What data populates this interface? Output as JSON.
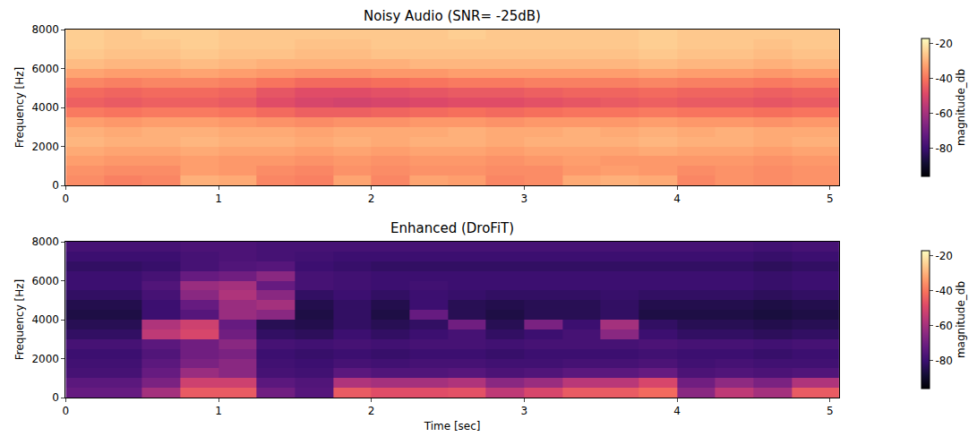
{
  "chart_data": [
    {
      "type": "heatmap",
      "title": "Noisy Audio (SNR= -25dB)",
      "ylabel": "Frequency [Hz]",
      "xlim": [
        0,
        5.06
      ],
      "xticks": [
        0,
        1,
        2,
        3,
        4,
        5
      ],
      "ylim": [
        0,
        8000
      ],
      "yticks": [
        0,
        2000,
        4000,
        6000,
        8000
      ],
      "zlim": [
        -96,
        -17
      ],
      "zticks": [
        -20,
        -40,
        -60,
        -80
      ],
      "colorbar_label": "magnitude_db",
      "time_edges": [
        0,
        0.25,
        0.5,
        0.75,
        1,
        1.25,
        1.5,
        1.75,
        2,
        2.25,
        2.5,
        2.75,
        3,
        3.25,
        3.5,
        3.75,
        4,
        4.25,
        4.5,
        4.75,
        5.06
      ],
      "freq_edges": [
        0,
        500,
        1000,
        1500,
        2000,
        2500,
        3000,
        3500,
        4000,
        4500,
        5000,
        5500,
        6000,
        6500,
        7000,
        7500,
        8000
      ],
      "cells": [
        [
          -36,
          -38,
          -37,
          -30,
          -31,
          -37,
          -38,
          -32,
          -37,
          -32,
          -33,
          -37,
          -36,
          -31,
          -30,
          -31,
          -37,
          -35,
          -36,
          -35
        ],
        [
          -35,
          -36,
          -36,
          -33,
          -34,
          -36,
          -37,
          -35,
          -36,
          -35,
          -35,
          -36,
          -36,
          -34,
          -33,
          -34,
          -36,
          -35,
          -36,
          -35
        ],
        [
          -33,
          -34,
          -34,
          -33,
          -34,
          -34,
          -35,
          -34,
          -35,
          -34,
          -34,
          -35,
          -34,
          -33,
          -34,
          -34,
          -34,
          -34,
          -35,
          -34
        ],
        [
          -31,
          -32,
          -32,
          -31,
          -32,
          -32,
          -33,
          -32,
          -33,
          -32,
          -32,
          -33,
          -32,
          -32,
          -32,
          -31,
          -32,
          -32,
          -33,
          -32
        ],
        [
          -29,
          -30,
          -30,
          -29,
          -30,
          -30,
          -31,
          -30,
          -31,
          -30,
          -30,
          -31,
          -30,
          -30,
          -30,
          -29,
          -30,
          -30,
          -31,
          -30
        ],
        [
          -30,
          -31,
          -30,
          -30,
          -31,
          -31,
          -32,
          -31,
          -31,
          -31,
          -30,
          -31,
          -31,
          -30,
          -31,
          -30,
          -31,
          -30,
          -31,
          -31
        ],
        [
          -33,
          -34,
          -33,
          -33,
          -34,
          -35,
          -36,
          -35,
          -35,
          -34,
          -34,
          -35,
          -34,
          -34,
          -34,
          -33,
          -34,
          -34,
          -35,
          -34
        ],
        [
          -39,
          -40,
          -39,
          -39,
          -40,
          -42,
          -44,
          -44,
          -43,
          -42,
          -41,
          -42,
          -41,
          -40,
          -40,
          -39,
          -40,
          -40,
          -41,
          -40
        ],
        [
          -44,
          -45,
          -44,
          -44,
          -45,
          -48,
          -50,
          -51,
          -50,
          -49,
          -48,
          -48,
          -47,
          -46,
          -45,
          -44,
          -45,
          -45,
          -46,
          -45
        ],
        [
          -42,
          -43,
          -42,
          -42,
          -43,
          -46,
          -48,
          -48,
          -47,
          -46,
          -45,
          -45,
          -44,
          -43,
          -43,
          -42,
          -43,
          -43,
          -44,
          -43
        ],
        [
          -37,
          -38,
          -37,
          -37,
          -38,
          -40,
          -42,
          -42,
          -41,
          -40,
          -39,
          -39,
          -38,
          -38,
          -38,
          -37,
          -38,
          -38,
          -39,
          -38
        ],
        [
          -32,
          -33,
          -33,
          -32,
          -33,
          -34,
          -35,
          -35,
          -34,
          -34,
          -33,
          -33,
          -33,
          -33,
          -33,
          -32,
          -33,
          -33,
          -34,
          -33
        ],
        [
          -28,
          -29,
          -29,
          -28,
          -29,
          -30,
          -30,
          -30,
          -30,
          -29,
          -29,
          -29,
          -29,
          -29,
          -29,
          -28,
          -29,
          -29,
          -30,
          -29
        ],
        [
          -26,
          -27,
          -27,
          -26,
          -27,
          -27,
          -28,
          -28,
          -27,
          -27,
          -27,
          -27,
          -27,
          -27,
          -27,
          -26,
          -27,
          -27,
          -28,
          -27
        ],
        [
          -25,
          -26,
          -26,
          -25,
          -26,
          -26,
          -27,
          -27,
          -26,
          -26,
          -26,
          -26,
          -26,
          -26,
          -26,
          -25,
          -26,
          -26,
          -27,
          -26
        ],
        [
          -25,
          -26,
          -25,
          -25,
          -26,
          -26,
          -26,
          -26,
          -26,
          -26,
          -25,
          -26,
          -26,
          -26,
          -26,
          -25,
          -26,
          -26,
          -26,
          -26
        ]
      ]
    },
    {
      "type": "heatmap",
      "title": "Enhanced (DroFiT)",
      "xlabel": "Time [sec]",
      "ylabel": "Frequency [Hz]",
      "xlim": [
        0,
        5.06
      ],
      "xticks": [
        0,
        1,
        2,
        3,
        4,
        5
      ],
      "ylim": [
        0,
        8000
      ],
      "yticks": [
        0,
        2000,
        4000,
        6000,
        8000
      ],
      "zlim": [
        -96,
        -17
      ],
      "zticks": [
        -20,
        -40,
        -60,
        -80
      ],
      "colorbar_label": "magnitude_db",
      "time_edges": [
        0,
        0.25,
        0.5,
        0.75,
        1,
        1.25,
        1.5,
        1.75,
        2,
        2.25,
        2.5,
        2.75,
        3,
        3.25,
        3.5,
        3.75,
        4,
        4.25,
        4.5,
        4.75,
        5.06
      ],
      "freq_edges": [
        0,
        500,
        1000,
        1500,
        2000,
        2500,
        3000,
        3500,
        4000,
        4500,
        5000,
        5500,
        6000,
        6500,
        7000,
        7500,
        8000
      ],
      "cells": [
        [
          -72,
          -72,
          -60,
          -45,
          -45,
          -70,
          -75,
          -45,
          -48,
          -48,
          -47,
          -55,
          -50,
          -45,
          -45,
          -42,
          -65,
          -55,
          -60,
          -45
        ],
        [
          -74,
          -74,
          -68,
          -52,
          -52,
          -74,
          -76,
          -58,
          -60,
          -60,
          -58,
          -65,
          -62,
          -56,
          -56,
          -50,
          -70,
          -64,
          -68,
          -58
        ],
        [
          -78,
          -78,
          -72,
          -62,
          -65,
          -78,
          -79,
          -74,
          -76,
          -76,
          -75,
          -77,
          -76,
          -74,
          -74,
          -72,
          -77,
          -76,
          -77,
          -76
        ],
        [
          -79,
          -79,
          -74,
          -68,
          -65,
          -79,
          -80,
          -78,
          -79,
          -78,
          -78,
          -79,
          -79,
          -78,
          -78,
          -77,
          -79,
          -78,
          -79,
          -79
        ],
        [
          -80,
          -80,
          -76,
          -70,
          -68,
          -80,
          -81,
          -80,
          -81,
          -80,
          -80,
          -81,
          -80,
          -80,
          -80,
          -79,
          -80,
          -80,
          -81,
          -80
        ],
        [
          -78,
          -78,
          -74,
          -70,
          -65,
          -78,
          -79,
          -78,
          -79,
          -78,
          -78,
          -79,
          -78,
          -78,
          -78,
          -77,
          -78,
          -78,
          -79,
          -78
        ],
        [
          -82,
          -82,
          -55,
          -50,
          -70,
          -82,
          -83,
          -80,
          -82,
          -80,
          -78,
          -82,
          -80,
          -78,
          -65,
          -80,
          -82,
          -82,
          -83,
          -82
        ],
        [
          -84,
          -84,
          -58,
          -52,
          -72,
          -84,
          -85,
          -82,
          -84,
          -82,
          -70,
          -84,
          -68,
          -80,
          -60,
          -82,
          -84,
          -84,
          -85,
          -84
        ],
        [
          -86,
          -86,
          -80,
          -75,
          -62,
          -65,
          -86,
          -82,
          -86,
          -72,
          -84,
          -86,
          -84,
          -84,
          -82,
          -86,
          -86,
          -86,
          -87,
          -86
        ],
        [
          -85,
          -85,
          -80,
          -72,
          -62,
          -60,
          -85,
          -82,
          -85,
          -80,
          -84,
          -85,
          -84,
          -84,
          -82,
          -85,
          -85,
          -85,
          -86,
          -85
        ],
        [
          -82,
          -82,
          -78,
          -65,
          -58,
          -65,
          -82,
          -80,
          -82,
          -80,
          -81,
          -82,
          -82,
          -82,
          -81,
          -82,
          -82,
          -82,
          -83,
          -82
        ],
        [
          -80,
          -80,
          -76,
          -62,
          -60,
          -72,
          -78,
          -79,
          -80,
          -79,
          -80,
          -80,
          -80,
          -80,
          -80,
          -80,
          -80,
          -80,
          -81,
          -80
        ],
        [
          -80,
          -80,
          -78,
          -72,
          -70,
          -65,
          -78,
          -79,
          -80,
          -80,
          -80,
          -80,
          -80,
          -80,
          -80,
          -80,
          -80,
          -80,
          -81,
          -80
        ],
        [
          -82,
          -82,
          -81,
          -78,
          -76,
          -75,
          -80,
          -81,
          -82,
          -82,
          -82,
          -82,
          -82,
          -82,
          -82,
          -82,
          -82,
          -82,
          -83,
          -82
        ],
        [
          -80,
          -80,
          -80,
          -78,
          -77,
          -78,
          -79,
          -80,
          -80,
          -80,
          -80,
          -80,
          -80,
          -80,
          -80,
          -80,
          -80,
          -80,
          -81,
          -80
        ],
        [
          -78,
          -78,
          -78,
          -77,
          -77,
          -78,
          -78,
          -78,
          -78,
          -78,
          -78,
          -78,
          -78,
          -78,
          -78,
          -78,
          -78,
          -78,
          -79,
          -78
        ]
      ]
    }
  ]
}
